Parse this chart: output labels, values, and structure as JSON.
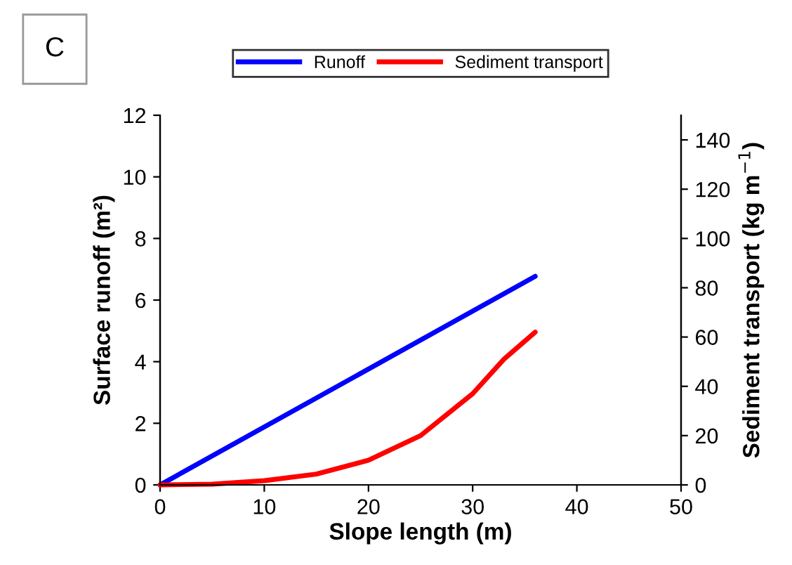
{
  "chart_data": {
    "type": "line",
    "xlabel": "Slope length (m)",
    "ylabel": "Surface runoff (m²)",
    "y2label": "Sediment transport (kg m$^{−1}$)",
    "annotations": [
      "C"
    ],
    "xlim": [
      0,
      50
    ],
    "xticks": [
      0,
      10,
      20,
      30,
      40,
      50
    ],
    "ylim": [
      0,
      12
    ],
    "yticks": [
      0,
      2,
      4,
      6,
      8,
      10,
      12
    ],
    "y2lim": [
      0,
      150
    ],
    "y2ticks": [
      0,
      20,
      40,
      60,
      80,
      100,
      120,
      140
    ],
    "legend": "top",
    "grid": false,
    "marker": "none",
    "line_style": "solid",
    "series": [
      {
        "name": "Runoff",
        "color": "#0000ff",
        "x": [
          0,
          36
        ],
        "values": [
          0,
          6.77
        ]
      },
      {
        "name": "Sediment transport",
        "color": "#ff0000",
        "axis": "y2",
        "x": [
          0,
          5,
          10,
          15,
          20,
          25,
          30,
          33,
          36
        ],
        "values": [
          0,
          0.3,
          1.7,
          4.4,
          10,
          20,
          37,
          51,
          62
        ]
      }
    ]
  }
}
